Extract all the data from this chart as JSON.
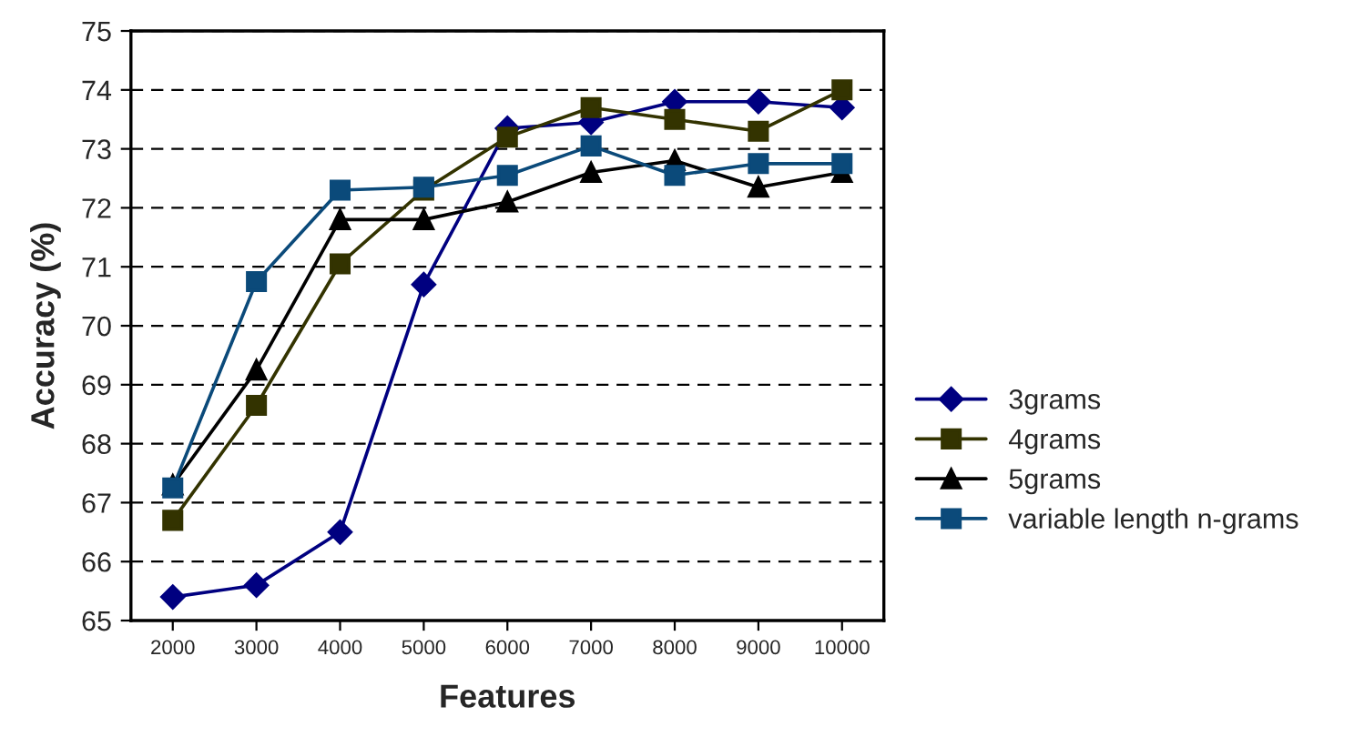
{
  "chart_data": {
    "type": "line",
    "xlabel": "Features",
    "ylabel": "Accuracy (%)",
    "categories": [
      "2000",
      "3000",
      "4000",
      "5000",
      "6000",
      "7000",
      "8000",
      "9000",
      "10000"
    ],
    "series": [
      {
        "name": "3grams",
        "color": "#000080",
        "marker": "diamond",
        "values": [
          65.4,
          65.6,
          66.5,
          70.7,
          73.35,
          73.45,
          73.8,
          73.8,
          73.7
        ]
      },
      {
        "name": "4grams",
        "color": "#333300",
        "marker": "square",
        "values": [
          66.7,
          68.65,
          71.05,
          72.3,
          73.2,
          73.7,
          73.5,
          73.3,
          74.0
        ]
      },
      {
        "name": "5grams",
        "color": "#000000",
        "marker": "triangle",
        "values": [
          67.3,
          69.25,
          71.8,
          71.8,
          72.1,
          72.6,
          72.8,
          72.35,
          72.6
        ]
      },
      {
        "name": "variable length n-grams",
        "color": "#0b4a7a",
        "marker": "square",
        "values": [
          67.25,
          70.75,
          72.3,
          72.35,
          72.55,
          73.05,
          72.55,
          72.75,
          72.75
        ]
      }
    ],
    "ylim": [
      65,
      75
    ],
    "yticks": [
      65,
      66,
      67,
      68,
      69,
      70,
      71,
      72,
      73,
      74,
      75
    ],
    "grid": "y",
    "legend": "right",
    "line_style": "solid"
  }
}
